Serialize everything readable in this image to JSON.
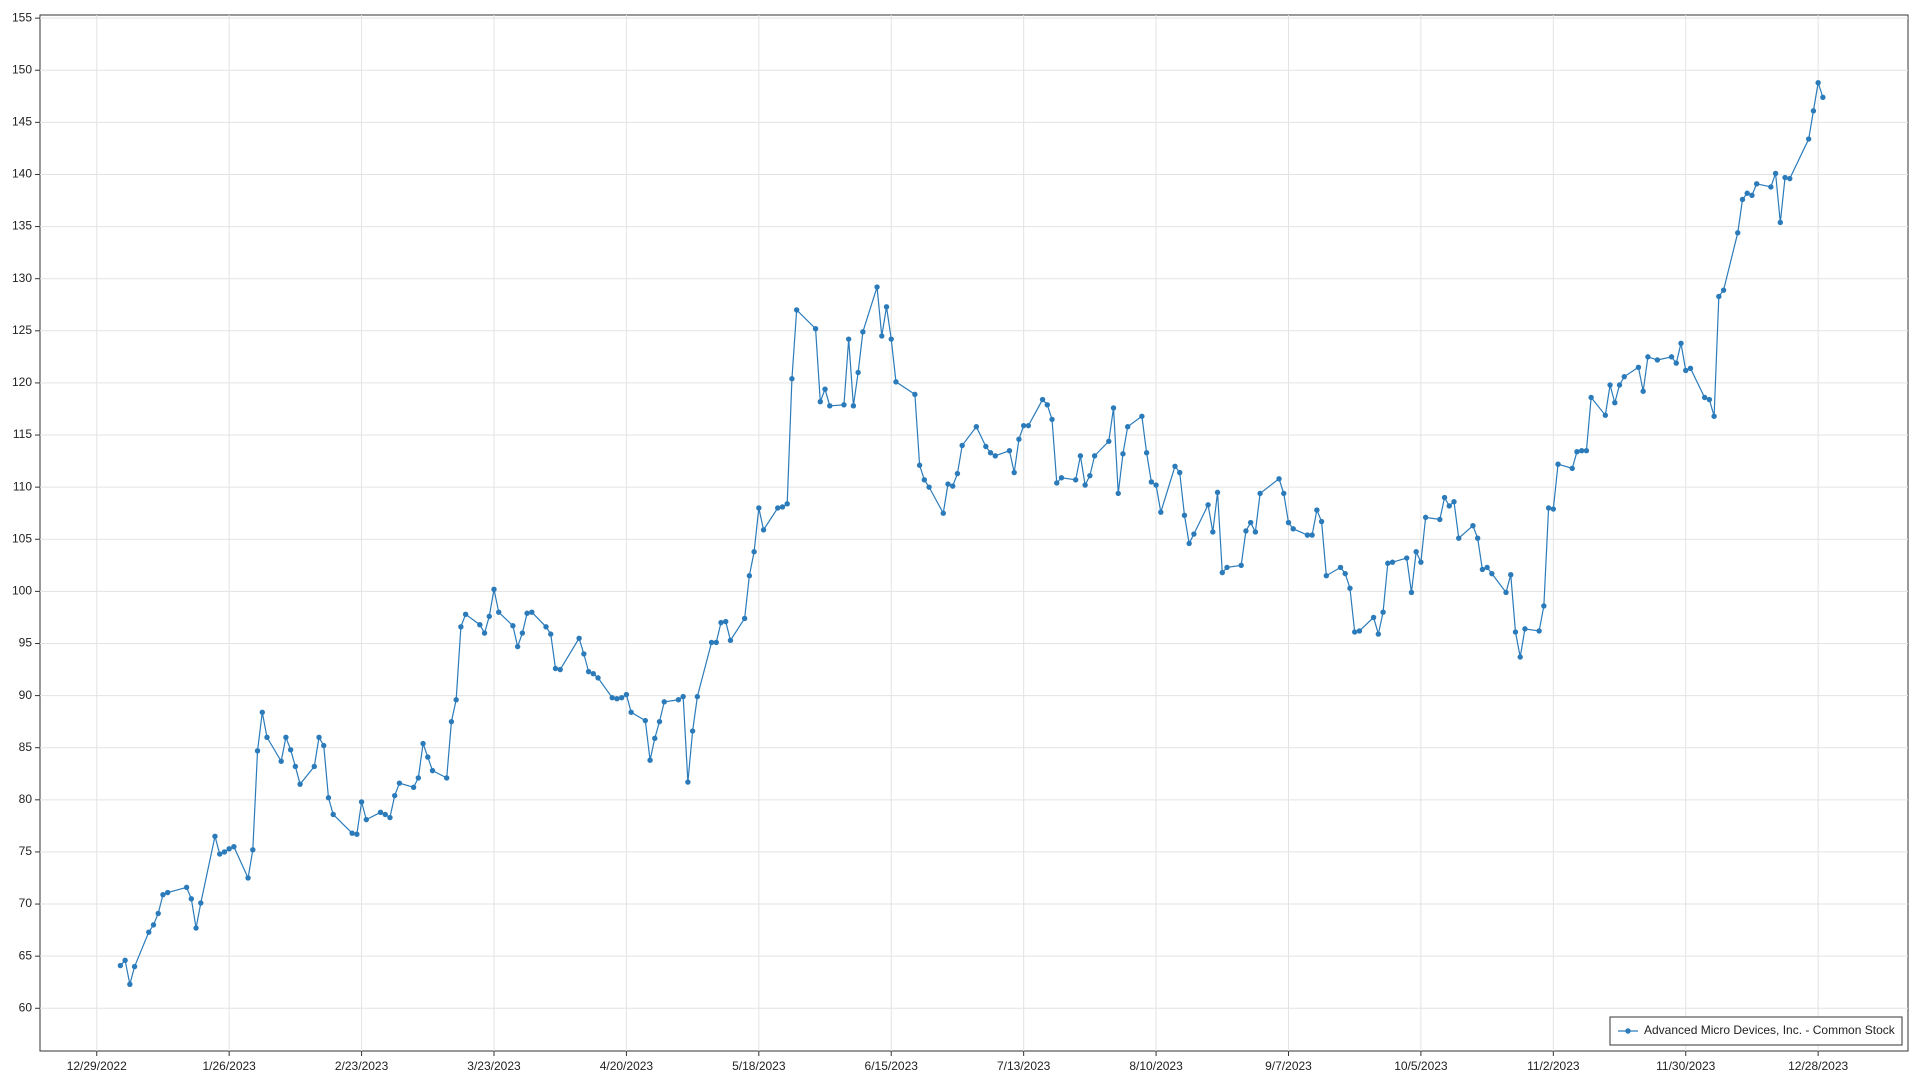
{
  "chart_data": {
    "type": "line",
    "x": [
      "1/3/2023",
      "1/4/2023",
      "1/5/2023",
      "1/6/2023",
      "1/9/2023",
      "1/10/2023",
      "1/11/2023",
      "1/12/2023",
      "1/13/2023",
      "1/17/2023",
      "1/18/2023",
      "1/19/2023",
      "1/20/2023",
      "1/23/2023",
      "1/24/2023",
      "1/25/2023",
      "1/26/2023",
      "1/27/2023",
      "1/30/2023",
      "1/31/2023",
      "2/1/2023",
      "2/2/2023",
      "2/3/2023",
      "2/6/2023",
      "2/7/2023",
      "2/8/2023",
      "2/9/2023",
      "2/10/2023",
      "2/13/2023",
      "2/14/2023",
      "2/15/2023",
      "2/16/2023",
      "2/17/2023",
      "2/21/2023",
      "2/22/2023",
      "2/23/2023",
      "2/24/2023",
      "2/27/2023",
      "2/28/2023",
      "3/1/2023",
      "3/2/2023",
      "3/3/2023",
      "3/6/2023",
      "3/7/2023",
      "3/8/2023",
      "3/9/2023",
      "3/10/2023",
      "3/13/2023",
      "3/14/2023",
      "3/15/2023",
      "3/16/2023",
      "3/17/2023",
      "3/20/2023",
      "3/21/2023",
      "3/22/2023",
      "3/23/2023",
      "3/24/2023",
      "3/27/2023",
      "3/28/2023",
      "3/29/2023",
      "3/30/2023",
      "3/31/2023",
      "4/3/2023",
      "4/4/2023",
      "4/5/2023",
      "4/6/2023",
      "4/10/2023",
      "4/11/2023",
      "4/12/2023",
      "4/13/2023",
      "4/14/2023",
      "4/17/2023",
      "4/18/2023",
      "4/19/2023",
      "4/20/2023",
      "4/21/2023",
      "4/24/2023",
      "4/25/2023",
      "4/26/2023",
      "4/27/2023",
      "4/28/2023",
      "5/1/2023",
      "5/2/2023",
      "5/3/2023",
      "5/4/2023",
      "5/5/2023",
      "5/8/2023",
      "5/9/2023",
      "5/10/2023",
      "5/11/2023",
      "5/12/2023",
      "5/15/2023",
      "5/16/2023",
      "5/17/2023",
      "5/18/2023",
      "5/19/2023",
      "5/22/2023",
      "5/23/2023",
      "5/24/2023",
      "5/25/2023",
      "5/26/2023",
      "5/30/2023",
      "5/31/2023",
      "6/1/2023",
      "6/2/2023",
      "6/5/2023",
      "6/6/2023",
      "6/7/2023",
      "6/8/2023",
      "6/9/2023",
      "6/12/2023",
      "6/13/2023",
      "6/14/2023",
      "6/15/2023",
      "6/16/2023",
      "6/20/2023",
      "6/21/2023",
      "6/22/2023",
      "6/23/2023",
      "6/26/2023",
      "6/27/2023",
      "6/28/2023",
      "6/29/2023",
      "6/30/2023",
      "7/3/2023",
      "7/5/2023",
      "7/6/2023",
      "7/7/2023",
      "7/10/2023",
      "7/11/2023",
      "7/12/2023",
      "7/13/2023",
      "7/14/2023",
      "7/17/2023",
      "7/18/2023",
      "7/19/2023",
      "7/20/2023",
      "7/21/2023",
      "7/24/2023",
      "7/25/2023",
      "7/26/2023",
      "7/27/2023",
      "7/28/2023",
      "7/31/2023",
      "8/1/2023",
      "8/2/2023",
      "8/3/2023",
      "8/4/2023",
      "8/7/2023",
      "8/8/2023",
      "8/9/2023",
      "8/10/2023",
      "8/11/2023",
      "8/14/2023",
      "8/15/2023",
      "8/16/2023",
      "8/17/2023",
      "8/18/2023",
      "8/21/2023",
      "8/22/2023",
      "8/23/2023",
      "8/24/2023",
      "8/25/2023",
      "8/28/2023",
      "8/29/2023",
      "8/30/2023",
      "8/31/2023",
      "9/1/2023",
      "9/5/2023",
      "9/6/2023",
      "9/7/2023",
      "9/8/2023",
      "9/11/2023",
      "9/12/2023",
      "9/13/2023",
      "9/14/2023",
      "9/15/2023",
      "9/18/2023",
      "9/19/2023",
      "9/20/2023",
      "9/21/2023",
      "9/22/2023",
      "9/25/2023",
      "9/26/2023",
      "9/27/2023",
      "9/28/2023",
      "9/29/2023",
      "10/2/2023",
      "10/3/2023",
      "10/4/2023",
      "10/5/2023",
      "10/6/2023",
      "10/9/2023",
      "10/10/2023",
      "10/11/2023",
      "10/12/2023",
      "10/13/2023",
      "10/16/2023",
      "10/17/2023",
      "10/18/2023",
      "10/19/2023",
      "10/20/2023",
      "10/23/2023",
      "10/24/2023",
      "10/25/2023",
      "10/26/2023",
      "10/27/2023",
      "10/30/2023",
      "10/31/2023",
      "11/1/2023",
      "11/2/2023",
      "11/3/2023",
      "11/6/2023",
      "11/7/2023",
      "11/8/2023",
      "11/9/2023",
      "11/10/2023",
      "11/13/2023",
      "11/14/2023",
      "11/15/2023",
      "11/16/2023",
      "11/17/2023",
      "11/20/2023",
      "11/21/2023",
      "11/22/2023",
      "11/24/2023",
      "11/27/2023",
      "11/28/2023",
      "11/29/2023",
      "11/30/2023",
      "12/1/2023",
      "12/4/2023",
      "12/5/2023",
      "12/6/2023",
      "12/7/2023",
      "12/8/2023",
      "12/11/2023",
      "12/12/2023",
      "12/13/2023",
      "12/14/2023",
      "12/15/2023",
      "12/18/2023",
      "12/19/2023",
      "12/20/2023",
      "12/21/2023",
      "12/22/2023",
      "12/26/2023",
      "12/27/2023",
      "12/28/2023",
      "12/29/2023"
    ],
    "series": [
      {
        "name": "Advanced Micro Devices, Inc. - Common Stock",
        "color": "#2b7bba",
        "values": [
          64.1,
          64.6,
          62.3,
          64.0,
          67.3,
          68.0,
          69.1,
          70.9,
          71.1,
          71.6,
          70.5,
          67.7,
          70.1,
          76.5,
          74.8,
          75.0,
          75.3,
          75.5,
          72.5,
          75.2,
          84.7,
          88.4,
          86.0,
          83.7,
          86.0,
          84.8,
          83.2,
          81.5,
          83.2,
          86.0,
          85.2,
          80.2,
          78.6,
          76.8,
          76.7,
          79.8,
          78.1,
          78.8,
          78.6,
          78.3,
          80.4,
          81.6,
          81.2,
          82.1,
          85.4,
          84.1,
          82.8,
          82.1,
          87.5,
          89.6,
          96.6,
          97.8,
          96.8,
          96.0,
          97.6,
          100.2,
          98.0,
          96.7,
          94.7,
          96.0,
          97.9,
          98.0,
          96.6,
          95.9,
          92.6,
          92.5,
          95.5,
          94.0,
          92.3,
          92.1,
          91.7,
          89.8,
          89.7,
          89.8,
          90.1,
          88.4,
          87.6,
          83.8,
          85.9,
          87.5,
          89.4,
          89.6,
          89.9,
          81.7,
          86.6,
          89.9,
          95.1,
          95.1,
          97.0,
          97.1,
          95.3,
          97.4,
          101.5,
          103.8,
          108.0,
          105.9,
          108.0,
          108.1,
          108.4,
          120.4,
          127.0,
          125.2,
          118.2,
          119.4,
          117.8,
          117.9,
          124.2,
          117.8,
          121.0,
          124.9,
          129.2,
          124.5,
          127.3,
          124.2,
          120.1,
          118.9,
          112.1,
          110.7,
          110.0,
          107.5,
          110.3,
          110.1,
          111.3,
          114.0,
          115.8,
          113.9,
          113.3,
          113.0,
          113.5,
          111.4,
          114.6,
          115.9,
          115.9,
          118.4,
          117.9,
          116.5,
          110.4,
          110.9,
          110.7,
          113.0,
          110.2,
          111.1,
          113.0,
          114.4,
          117.6,
          109.4,
          113.2,
          115.8,
          116.8,
          113.3,
          110.5,
          110.2,
          107.6,
          112.0,
          111.4,
          107.3,
          104.6,
          105.5,
          108.3,
          105.7,
          109.5,
          101.8,
          102.3,
          102.5,
          105.8,
          106.6,
          105.7,
          109.4,
          110.8,
          109.4,
          106.6,
          106.0,
          105.4,
          105.4,
          107.8,
          106.7,
          101.5,
          102.3,
          101.7,
          100.3,
          96.1,
          96.2,
          97.5,
          95.9,
          98.0,
          102.7,
          102.8,
          103.2,
          99.9,
          103.8,
          102.8,
          107.1,
          106.9,
          109.0,
          108.2,
          108.6,
          105.1,
          106.3,
          105.1,
          102.1,
          102.3,
          101.7,
          99.9,
          101.6,
          96.1,
          93.7,
          96.4,
          96.2,
          98.6,
          108.0,
          107.9,
          112.2,
          111.8,
          113.4,
          113.5,
          113.5,
          118.6,
          116.9,
          119.8,
          118.1,
          119.8,
          120.6,
          121.5,
          119.2,
          122.5,
          122.2,
          122.5,
          121.9,
          123.8,
          121.2,
          121.4,
          118.6,
          118.4,
          116.8,
          128.3,
          128.9,
          134.4,
          137.6,
          138.2,
          138.0,
          139.1,
          138.8,
          140.1,
          135.4,
          139.7,
          139.6,
          143.4,
          146.1,
          148.8,
          147.4
        ]
      }
    ],
    "xlim": [
      "12/17/2022",
      "1/16/2024"
    ],
    "xticks": [
      "12/29/2022",
      "1/26/2023",
      "2/23/2023",
      "3/23/2023",
      "4/20/2023",
      "5/18/2023",
      "6/15/2023",
      "7/13/2023",
      "8/10/2023",
      "9/7/2023",
      "10/5/2023",
      "11/2/2023",
      "11/30/2023",
      "12/28/2023"
    ],
    "ylim": [
      55.9,
      155.3
    ],
    "yticks": [
      60,
      65,
      70,
      75,
      80,
      85,
      90,
      95,
      100,
      105,
      110,
      115,
      120,
      125,
      130,
      135,
      140,
      145,
      150,
      155
    ],
    "grid": true,
    "markers": true,
    "legend": "bottom-right"
  }
}
